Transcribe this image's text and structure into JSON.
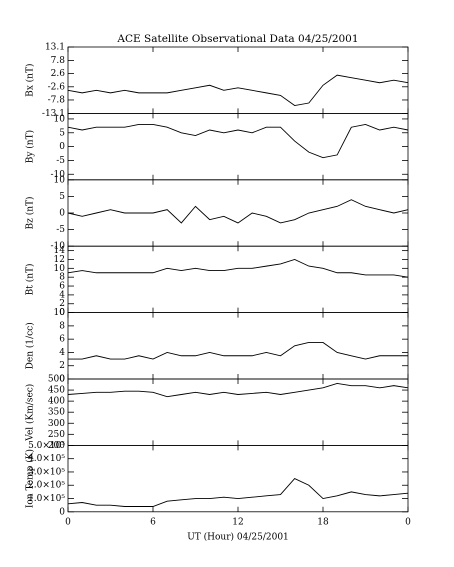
{
  "chart_data": [
    {
      "type": "line",
      "title": "ACE Satellite Observational Data   04/25/2001",
      "ylabel": "Bx (nT)",
      "x": [
        0,
        1,
        2,
        3,
        4,
        5,
        6,
        7,
        8,
        9,
        10,
        11,
        12,
        13,
        14,
        15,
        16,
        17,
        18,
        19,
        20,
        21,
        22,
        23,
        24
      ],
      "values": [
        -4,
        -5,
        -4,
        -5,
        -4,
        -5,
        -5,
        -5,
        -4,
        -3,
        -2,
        -4,
        -3,
        -4,
        -5,
        -6,
        -10,
        -9,
        -2,
        2,
        1,
        0,
        -1,
        0,
        -1
      ],
      "color": "#000000",
      "xlim": [
        0,
        24
      ],
      "xticks": [
        0,
        6,
        12,
        18,
        24
      ],
      "ylim": [
        -13.1,
        13.1
      ],
      "yticks": [
        -13.1,
        -7.8,
        -2.6,
        2.6,
        7.8,
        13.1
      ]
    },
    {
      "type": "line",
      "ylabel": "By (nT)",
      "x": [
        0,
        1,
        2,
        3,
        4,
        5,
        6,
        7,
        8,
        9,
        10,
        11,
        12,
        13,
        14,
        15,
        16,
        17,
        18,
        19,
        20,
        21,
        22,
        23,
        24
      ],
      "values": [
        7,
        6,
        7,
        7,
        7,
        8,
        8,
        7,
        5,
        4,
        6,
        5,
        6,
        5,
        7,
        7,
        2,
        -2,
        -4,
        -3,
        7,
        8,
        6,
        7,
        6
      ],
      "color": "#000000",
      "xlim": [
        0,
        24
      ],
      "xticks": [
        0,
        6,
        12,
        18,
        24
      ],
      "ylim": [
        -12,
        12
      ],
      "yticks": [
        -10,
        -5,
        0,
        5,
        10
      ]
    },
    {
      "type": "line",
      "ylabel": "Bz (nT)",
      "x": [
        0,
        1,
        2,
        3,
        4,
        5,
        6,
        7,
        8,
        9,
        10,
        11,
        12,
        13,
        14,
        15,
        16,
        17,
        18,
        19,
        20,
        21,
        22,
        23,
        24
      ],
      "values": [
        0,
        -1,
        0,
        1,
        0,
        0,
        0,
        1,
        -3,
        2,
        -2,
        -1,
        -3,
        0,
        -1,
        -3,
        -2,
        0,
        1,
        2,
        4,
        2,
        1,
        0,
        1
      ],
      "color": "#000000",
      "xlim": [
        0,
        24
      ],
      "xticks": [
        0,
        6,
        12,
        18,
        24
      ],
      "ylim": [
        -10,
        10
      ],
      "yticks": [
        -10,
        -5,
        0,
        5,
        10
      ]
    },
    {
      "type": "line",
      "ylabel": "Bt (nT)",
      "x": [
        0,
        1,
        2,
        3,
        4,
        5,
        6,
        7,
        8,
        9,
        10,
        11,
        12,
        13,
        14,
        15,
        16,
        17,
        18,
        19,
        20,
        21,
        22,
        23,
        24
      ],
      "values": [
        9,
        9.5,
        9,
        9,
        9,
        9,
        9,
        10,
        9.5,
        10,
        9.5,
        9.5,
        10,
        10,
        10.5,
        11,
        12,
        10.5,
        10,
        9,
        9,
        8.5,
        8.5,
        8.5,
        8
      ],
      "color": "#000000",
      "xlim": [
        0,
        24
      ],
      "xticks": [
        0,
        6,
        12,
        18,
        24
      ],
      "ylim": [
        0,
        15
      ],
      "yticks": [
        0,
        2,
        4,
        6,
        8,
        10,
        12,
        14
      ]
    },
    {
      "type": "line",
      "ylabel": "Den (1/cc)",
      "x": [
        0,
        1,
        2,
        3,
        4,
        5,
        6,
        7,
        8,
        9,
        10,
        11,
        12,
        13,
        14,
        15,
        16,
        17,
        18,
        19,
        20,
        21,
        22,
        23,
        24
      ],
      "values": [
        3,
        3,
        3.5,
        3,
        3,
        3.5,
        3,
        4,
        3.5,
        3.5,
        4,
        3.5,
        3.5,
        3.5,
        4,
        3.5,
        5,
        5.5,
        5.5,
        4,
        3.5,
        3,
        3.5,
        3.5,
        3.5
      ],
      "color": "#000000",
      "xlim": [
        0,
        24
      ],
      "xticks": [
        0,
        6,
        12,
        18,
        24
      ],
      "ylim": [
        0,
        10
      ],
      "yticks": [
        0,
        2,
        4,
        6,
        8,
        10
      ]
    },
    {
      "type": "line",
      "ylabel": "Vel (Km/sec)",
      "x": [
        0,
        1,
        2,
        3,
        4,
        5,
        6,
        7,
        8,
        9,
        10,
        11,
        12,
        13,
        14,
        15,
        16,
        17,
        18,
        19,
        20,
        21,
        22,
        23,
        24
      ],
      "values": [
        430,
        435,
        440,
        440,
        445,
        445,
        440,
        420,
        430,
        440,
        430,
        440,
        430,
        435,
        440,
        430,
        440,
        450,
        460,
        480,
        470,
        470,
        460,
        470,
        460
      ],
      "color": "#000000",
      "xlim": [
        0,
        24
      ],
      "xticks": [
        0,
        6,
        12,
        18,
        24
      ],
      "ylim": [
        200,
        500
      ],
      "yticks": [
        200,
        250,
        300,
        350,
        400,
        450,
        500
      ]
    },
    {
      "type": "line",
      "ylabel": "Ion Temp (K)",
      "xlabel": "UT (Hour)  04/25/2001",
      "x": [
        0,
        1,
        2,
        3,
        4,
        5,
        6,
        7,
        8,
        9,
        10,
        11,
        12,
        13,
        14,
        15,
        16,
        17,
        18,
        19,
        20,
        21,
        22,
        23,
        24
      ],
      "values": [
        60000,
        70000,
        50000,
        50000,
        40000,
        40000,
        40000,
        80000,
        90000,
        100000,
        100000,
        110000,
        100000,
        110000,
        120000,
        130000,
        250000,
        200000,
        100000,
        120000,
        150000,
        130000,
        120000,
        130000,
        140000
      ],
      "color": "#000000",
      "xlim": [
        0,
        24
      ],
      "xticks": [
        0,
        6,
        12,
        18,
        {
          "value": 24,
          "label": "0"
        }
      ],
      "ylim": [
        0,
        500000
      ],
      "yticks": [
        0,
        {
          "value": 100000,
          "label": "1.0×10⁵"
        },
        {
          "value": 200000,
          "label": "2.0×10⁵"
        },
        {
          "value": 300000,
          "label": "3.0×10⁵"
        },
        {
          "value": 400000,
          "label": "4.0×10⁵"
        },
        {
          "value": 500000,
          "label": "5.0×10⁵"
        }
      ]
    }
  ]
}
